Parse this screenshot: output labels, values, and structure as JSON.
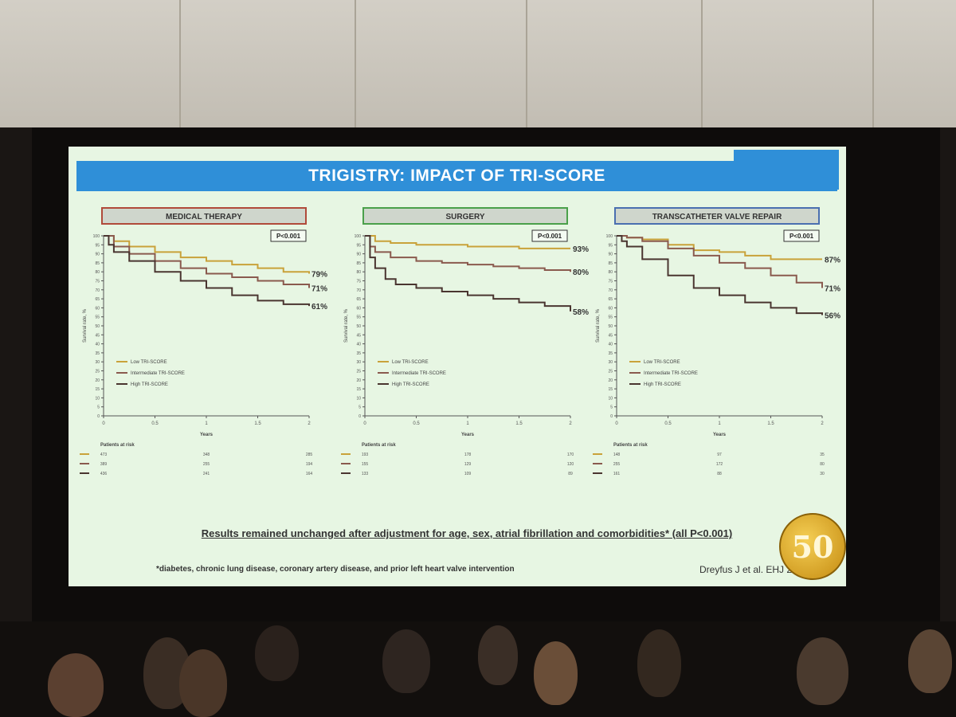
{
  "slide": {
    "title": "TRIGISTRY: IMPACT OF TRI-SCORE",
    "result_note": "Results remained unchanged after adjustment for age, sex, atrial fibrillation and comorbidities* (all P<0.001)",
    "footnote": "*diabetes, chronic lung disease, coronary artery disease, and prior left heart valve intervention",
    "citation": "Dreyfus J et al. EHJ 2022",
    "seal_text": "50"
  },
  "colors": {
    "banner": "#2f8fd8",
    "low": "#c9a23a",
    "intermediate": "#8a5a4e",
    "high": "#4a3530",
    "medical_border": "#b04a3a",
    "surgery_border": "#4aa04a",
    "tvr_border": "#4a6fb0"
  },
  "chart_data": [
    {
      "type": "line",
      "title": "MEDICAL THERAPY",
      "p_value": "P<0.001",
      "xlabel": "Years",
      "ylabel": "Survival rate, %",
      "x_ticks": [
        "0",
        "0.5",
        "1",
        "1.5",
        "2"
      ],
      "y_ticks": [
        "0",
        "5",
        "10",
        "15",
        "20",
        "25",
        "30",
        "35",
        "40",
        "45",
        "50",
        "55",
        "60",
        "65",
        "70",
        "75",
        "80",
        "85",
        "90",
        "95",
        "100"
      ],
      "xlim": [
        0,
        2
      ],
      "ylim": [
        0,
        100
      ],
      "legend_position": "bottom-left",
      "series": [
        {
          "name": "Low TRI-SCORE",
          "end_label": "79%",
          "x": [
            0,
            0.1,
            0.25,
            0.5,
            0.75,
            1,
            1.25,
            1.5,
            1.75,
            2
          ],
          "y": [
            100,
            97,
            94,
            91,
            88,
            86,
            84,
            82,
            80,
            79
          ]
        },
        {
          "name": "Intermediate TRI-SCORE",
          "end_label": "71%",
          "x": [
            0,
            0.1,
            0.25,
            0.5,
            0.75,
            1,
            1.25,
            1.5,
            1.75,
            2
          ],
          "y": [
            100,
            94,
            90,
            86,
            82,
            79,
            77,
            75,
            73,
            71
          ]
        },
        {
          "name": "High TRI-SCORE",
          "end_label": "61%",
          "x": [
            0,
            0.05,
            0.1,
            0.25,
            0.5,
            0.75,
            1,
            1.25,
            1.5,
            1.75,
            2
          ],
          "y": [
            100,
            95,
            91,
            86,
            80,
            75,
            71,
            67,
            64,
            62,
            61
          ]
        }
      ],
      "at_risk_header": "Patients at risk",
      "at_risk": [
        [
          "473",
          "348",
          "285"
        ],
        [
          "389",
          "255",
          "194"
        ],
        [
          "436",
          "241",
          "164"
        ]
      ]
    },
    {
      "type": "line",
      "title": "SURGERY",
      "p_value": "P<0.001",
      "xlabel": "Years",
      "ylabel": "Survival rate, %",
      "x_ticks": [
        "0",
        "0.5",
        "1",
        "1.5",
        "2"
      ],
      "y_ticks": [
        "0",
        "5",
        "10",
        "15",
        "20",
        "25",
        "30",
        "35",
        "40",
        "45",
        "50",
        "55",
        "60",
        "65",
        "70",
        "75",
        "80",
        "85",
        "90",
        "95",
        "100"
      ],
      "xlim": [
        0,
        2
      ],
      "ylim": [
        0,
        100
      ],
      "legend_position": "bottom-left",
      "series": [
        {
          "name": "Low TRI-SCORE",
          "end_label": "93%",
          "x": [
            0,
            0.1,
            0.25,
            0.5,
            0.75,
            1,
            1.25,
            1.5,
            1.75,
            2
          ],
          "y": [
            100,
            97,
            96,
            95,
            95,
            94,
            94,
            93,
            93,
            93
          ]
        },
        {
          "name": "Intermediate TRI-SCORE",
          "end_label": "80%",
          "x": [
            0,
            0.05,
            0.1,
            0.25,
            0.5,
            0.75,
            1,
            1.25,
            1.5,
            1.75,
            2
          ],
          "y": [
            100,
            94,
            91,
            88,
            86,
            85,
            84,
            83,
            82,
            81,
            80
          ]
        },
        {
          "name": "High TRI-SCORE",
          "end_label": "58%",
          "x": [
            0,
            0.05,
            0.1,
            0.2,
            0.3,
            0.5,
            0.75,
            1,
            1.25,
            1.5,
            1.75,
            2
          ],
          "y": [
            100,
            88,
            82,
            76,
            73,
            71,
            69,
            67,
            65,
            63,
            61,
            58
          ]
        }
      ],
      "at_risk_header": "Patients at risk",
      "at_risk": [
        [
          "193",
          "178",
          "170"
        ],
        [
          "155",
          "129",
          "120"
        ],
        [
          "133",
          "109",
          "89"
        ]
      ]
    },
    {
      "type": "line",
      "title": "TRANSCATHETER VALVE REPAIR",
      "p_value": "P<0.001",
      "xlabel": "Years",
      "ylabel": "Survival rate, %",
      "x_ticks": [
        "0",
        "0.5",
        "1",
        "1.5",
        "2"
      ],
      "y_ticks": [
        "0",
        "5",
        "10",
        "15",
        "20",
        "25",
        "30",
        "35",
        "40",
        "45",
        "50",
        "55",
        "60",
        "65",
        "70",
        "75",
        "80",
        "85",
        "90",
        "95",
        "100"
      ],
      "xlim": [
        0,
        2
      ],
      "ylim": [
        0,
        100
      ],
      "legend_position": "bottom-left",
      "series": [
        {
          "name": "Low TRI-SCORE",
          "end_label": "87%",
          "x": [
            0,
            0.1,
            0.25,
            0.5,
            0.75,
            1,
            1.25,
            1.5,
            1.75,
            2
          ],
          "y": [
            100,
            99,
            98,
            95,
            92,
            91,
            89,
            87,
            87,
            87
          ]
        },
        {
          "name": "Intermediate TRI-SCORE",
          "end_label": "71%",
          "x": [
            0,
            0.1,
            0.25,
            0.5,
            0.75,
            1,
            1.25,
            1.5,
            1.75,
            2
          ],
          "y": [
            100,
            99,
            97,
            93,
            89,
            85,
            82,
            78,
            74,
            71
          ]
        },
        {
          "name": "High TRI-SCORE",
          "end_label": "56%",
          "x": [
            0,
            0.05,
            0.1,
            0.25,
            0.5,
            0.75,
            1,
            1.25,
            1.5,
            1.75,
            2
          ],
          "y": [
            100,
            97,
            94,
            87,
            78,
            71,
            67,
            63,
            60,
            57,
            56
          ]
        }
      ],
      "at_risk_header": "Patients at risk",
      "at_risk": [
        [
          "148",
          "97",
          "35"
        ],
        [
          "255",
          "172",
          "80"
        ],
        [
          "161",
          "88",
          "30"
        ]
      ]
    }
  ]
}
